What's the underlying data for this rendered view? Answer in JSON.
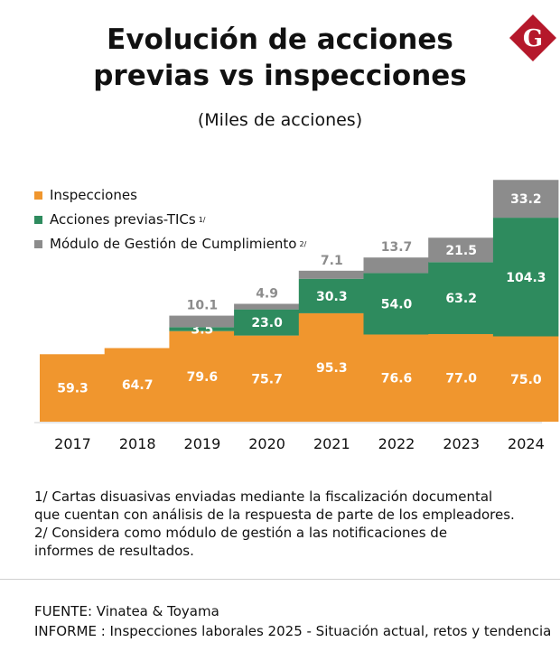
{
  "title_line1": "Evolución de acciones",
  "title_line2": "previas vs inspecciones",
  "subtitle": "(Miles de acciones)",
  "logo_letter": "G",
  "colors": {
    "inspecciones": "#F0962E",
    "acciones_previas": "#2E8B5E",
    "modulo": "#8C8C8C",
    "logo": "#B5182B",
    "axis": "#cfcfcf"
  },
  "legend": [
    {
      "label": "Inspecciones",
      "sup": "",
      "color_key": "inspecciones"
    },
    {
      "label": "Acciones previas-TICs",
      "sup": "1/",
      "color_key": "acciones_previas"
    },
    {
      "label": "Módulo de Gestión de Cumplimiento",
      "sup": "2/",
      "color_key": "modulo"
    }
  ],
  "chart_data": {
    "type": "bar",
    "stacked": true,
    "categories": [
      "2017",
      "2018",
      "2019",
      "2020",
      "2021",
      "2022",
      "2023",
      "2024"
    ],
    "series": [
      {
        "name": "Inspecciones",
        "values": [
          59.3,
          64.7,
          79.6,
          75.7,
          95.3,
          76.6,
          77.0,
          75.0
        ]
      },
      {
        "name": "Acciones previas-TICs",
        "values": [
          null,
          null,
          3.5,
          23.0,
          30.3,
          54.0,
          63.2,
          104.3
        ]
      },
      {
        "name": "Módulo de Gestión de Cumplimiento",
        "values": [
          null,
          null,
          10.1,
          4.9,
          7.1,
          13.7,
          21.5,
          33.2
        ]
      }
    ],
    "labels": [
      [
        "59.3",
        "64.7",
        "79.6",
        "75.7",
        "95.3",
        "76.6",
        "77.0",
        "75.0"
      ],
      [
        "",
        "",
        "3.5",
        "23.0",
        "30.3",
        "54.0",
        "63.2",
        "104.3"
      ],
      [
        "",
        "",
        "10.1",
        "4.9",
        "7.1",
        "13.7",
        "21.5",
        "33.2"
      ]
    ],
    "legend_position": "top-left",
    "grid": false
  },
  "notes": [
    "1/ Cartas disuasivas enviadas mediante la fiscalización documental",
    "que cuentan con análisis de la respuesta de parte de los empleadores.",
    "2/ Considera como módulo de gestión a las notificaciones de",
    "informes de resultados."
  ],
  "source": "FUENTE: Vinatea & Toyama",
  "report": "INFORME : Inspecciones laborales  2025 -  Situación actual, retos y  tendencia"
}
